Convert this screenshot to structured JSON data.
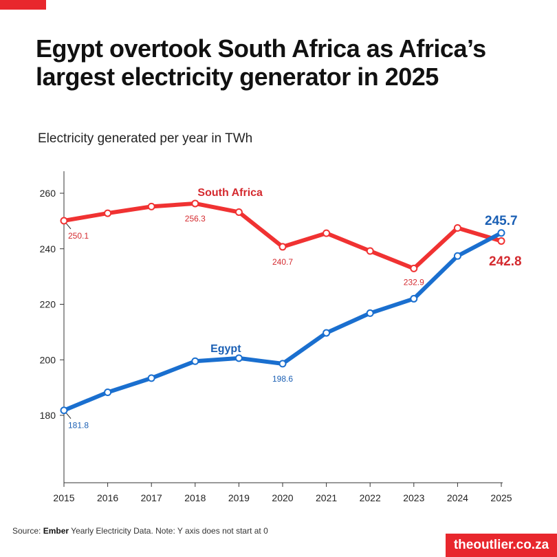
{
  "header": {
    "title": "Egypt overtook South Africa as Africa’s largest electricity generator in 2025",
    "subtitle": "Electricity generated per year in TWh"
  },
  "footer": {
    "source_prefix": "Source: ",
    "source_name": "Ember",
    "source_rest": " Yearly Electricity Data. Note: Y axis does not start at 0",
    "brand": "theoutlier.co.za"
  },
  "colors": {
    "accent": "#e8272d",
    "south_africa": "#f03232",
    "south_africa_label": "#d42a2f",
    "egypt": "#1a6fcf",
    "egypt_label": "#1a5fb4"
  },
  "chart_data": {
    "type": "line",
    "title": "Egypt overtook South Africa as Africa’s largest electricity generator in 2025",
    "subtitle": "Electricity generated per year in TWh",
    "xlabel": "",
    "ylabel": "",
    "x": [
      "2015",
      "2016",
      "2017",
      "2018",
      "2019",
      "2020",
      "2021",
      "2022",
      "2023",
      "2024",
      "2025"
    ],
    "ylim": [
      164,
      275
    ],
    "yticks": [
      180,
      200,
      220,
      240,
      260
    ],
    "grid": false,
    "legend": "none (series labelled directly)",
    "series": [
      {
        "name": "South Africa",
        "key": "south_africa",
        "values": [
          250.1,
          252.8,
          255.2,
          256.3,
          253.2,
          240.7,
          245.6,
          239.2,
          232.9,
          247.5,
          242.8
        ],
        "labels": {
          "0": "250.1",
          "3": "256.3",
          "5": "240.7",
          "8": "232.9"
        },
        "end_label": "242.8"
      },
      {
        "name": "Egypt",
        "key": "egypt",
        "values": [
          181.8,
          188.3,
          193.4,
          199.5,
          200.6,
          198.6,
          209.7,
          216.8,
          222.0,
          237.4,
          245.7
        ],
        "labels": {
          "0": "181.8",
          "5": "198.6"
        },
        "end_label": "245.7"
      }
    ]
  }
}
